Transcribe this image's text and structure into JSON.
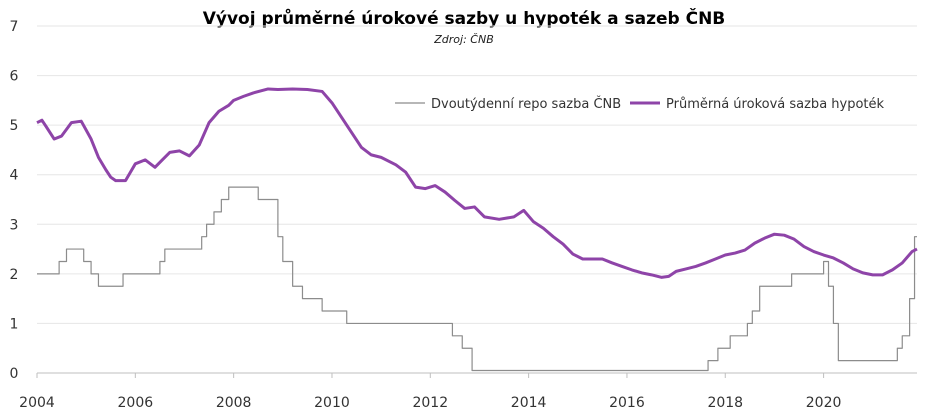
{
  "chart_data": {
    "type": "line",
    "title": "Vývoj průměrné úrokové sazby u hypoték a sazeb ČNB",
    "subtitle": "Zdroj: ČNB",
    "xlabel": "",
    "ylabel": "",
    "xlim": [
      2004,
      2021.9
    ],
    "ylim": [
      0,
      7
    ],
    "x_ticks": [
      2004,
      2006,
      2008,
      2010,
      2012,
      2014,
      2016,
      2018,
      2020
    ],
    "x_tick_labels": [
      "2004",
      "2006",
      "2008",
      "2010",
      "2012",
      "2014",
      "2016",
      "2018",
      "2020"
    ],
    "y_ticks": [
      0,
      1,
      2,
      3,
      4,
      5,
      6,
      7
    ],
    "y_tick_labels": [
      "0",
      "1",
      "2",
      "3",
      "4",
      "5",
      "6",
      "7"
    ],
    "grid": "horizontal",
    "legend_position": "top-right",
    "colors": {
      "repo": "#8c8c8c",
      "mortgage": "#8e44a8"
    },
    "series": [
      {
        "name": "Dvoutýdenní repo sazba ČNB",
        "style": "step",
        "x": [
          2004.0,
          2004.45,
          2004.6,
          2004.95,
          2005.1,
          2005.25,
          2005.75,
          2006.5,
          2006.6,
          2006.8,
          2007.35,
          2007.45,
          2007.6,
          2007.75,
          2007.9,
          2008.1,
          2008.5,
          2008.6,
          2008.9,
          2009.0,
          2009.2,
          2009.4,
          2009.8,
          2010.3,
          2012.45,
          2012.65,
          2012.85,
          2017.5,
          2017.65,
          2017.85,
          2018.1,
          2018.45,
          2018.55,
          2018.7,
          2019.1,
          2019.35,
          2020.0,
          2020.1,
          2020.2,
          2020.3,
          2021.4,
          2021.5,
          2021.6,
          2021.75,
          2021.85,
          2021.9
        ],
        "y": [
          2.0,
          2.25,
          2.5,
          2.25,
          2.0,
          1.75,
          2.0,
          2.25,
          2.5,
          2.5,
          2.75,
          3.0,
          3.25,
          3.5,
          3.75,
          3.75,
          3.5,
          3.5,
          2.75,
          2.25,
          1.75,
          1.5,
          1.25,
          1.0,
          0.75,
          0.5,
          0.05,
          0.05,
          0.25,
          0.5,
          0.75,
          1.0,
          1.25,
          1.75,
          1.75,
          2.0,
          2.25,
          1.75,
          1.0,
          0.25,
          0.25,
          0.5,
          0.75,
          1.5,
          2.75,
          2.75
        ],
        "values": [
          2.0,
          2.25,
          2.5,
          2.25,
          2.0,
          1.75,
          2.0,
          2.25,
          2.5,
          2.5,
          2.75,
          3.0,
          3.25,
          3.5,
          3.75,
          3.75,
          3.5,
          3.5,
          2.75,
          2.25,
          1.75,
          1.5,
          1.25,
          1.0,
          0.75,
          0.5,
          0.05,
          0.05,
          0.25,
          0.5,
          0.75,
          1.0,
          1.25,
          1.75,
          1.75,
          2.0,
          2.25,
          1.75,
          1.0,
          0.25,
          0.25,
          0.5,
          0.75,
          1.5,
          2.75,
          2.75
        ]
      },
      {
        "name": "Průměrná úroková sazba hypoték",
        "style": "line",
        "x": [
          2004.0,
          2004.1,
          2004.2,
          2004.35,
          2004.5,
          2004.7,
          2004.9,
          2005.1,
          2005.25,
          2005.4,
          2005.5,
          2005.6,
          2005.8,
          2006.0,
          2006.2,
          2006.4,
          2006.55,
          2006.7,
          2006.9,
          2007.1,
          2007.3,
          2007.5,
          2007.7,
          2007.9,
          2008.0,
          2008.2,
          2008.4,
          2008.7,
          2008.9,
          2009.2,
          2009.5,
          2009.8,
          2010.0,
          2010.2,
          2010.4,
          2010.6,
          2010.8,
          2011.0,
          2011.3,
          2011.5,
          2011.7,
          2011.9,
          2012.1,
          2012.3,
          2012.5,
          2012.7,
          2012.9,
          2013.1,
          2013.4,
          2013.7,
          2013.9,
          2014.1,
          2014.3,
          2014.5,
          2014.7,
          2014.9,
          2015.1,
          2015.3,
          2015.5,
          2015.7,
          2015.9,
          2016.1,
          2016.3,
          2016.5,
          2016.7,
          2016.85,
          2017.0,
          2017.2,
          2017.4,
          2017.6,
          2017.8,
          2018.0,
          2018.2,
          2018.4,
          2018.6,
          2018.8,
          2019.0,
          2019.2,
          2019.4,
          2019.6,
          2019.8,
          2020.0,
          2020.2,
          2020.4,
          2020.6,
          2020.8,
          2021.0,
          2021.2,
          2021.4,
          2021.6,
          2021.8,
          2021.9
        ],
        "y": [
          5.05,
          5.1,
          4.95,
          4.72,
          4.78,
          5.05,
          5.08,
          4.72,
          4.35,
          4.1,
          3.95,
          3.88,
          3.88,
          4.22,
          4.3,
          4.15,
          4.3,
          4.45,
          4.48,
          4.38,
          4.6,
          5.05,
          5.28,
          5.4,
          5.5,
          5.58,
          5.65,
          5.73,
          5.72,
          5.73,
          5.72,
          5.68,
          5.45,
          5.15,
          4.85,
          4.55,
          4.4,
          4.35,
          4.2,
          4.05,
          3.75,
          3.72,
          3.78,
          3.65,
          3.48,
          3.32,
          3.35,
          3.15,
          3.1,
          3.15,
          3.28,
          3.05,
          2.92,
          2.75,
          2.6,
          2.4,
          2.3,
          2.3,
          2.3,
          2.22,
          2.15,
          2.08,
          2.02,
          1.98,
          1.93,
          1.95,
          2.05,
          2.1,
          2.15,
          2.22,
          2.3,
          2.38,
          2.42,
          2.48,
          2.62,
          2.72,
          2.8,
          2.78,
          2.7,
          2.55,
          2.45,
          2.38,
          2.32,
          2.22,
          2.1,
          2.02,
          1.98,
          1.98,
          2.08,
          2.22,
          2.45,
          2.5
        ],
        "values": [
          5.05,
          5.1,
          4.95,
          4.72,
          4.78,
          5.05,
          5.08,
          4.72,
          4.35,
          4.1,
          3.95,
          3.88,
          3.88,
          4.22,
          4.3,
          4.15,
          4.3,
          4.45,
          4.48,
          4.38,
          4.6,
          5.05,
          5.28,
          5.4,
          5.5,
          5.58,
          5.65,
          5.73,
          5.72,
          5.73,
          5.72,
          5.68,
          5.45,
          5.15,
          4.85,
          4.55,
          4.4,
          4.35,
          4.2,
          4.05,
          3.75,
          3.72,
          3.78,
          3.65,
          3.48,
          3.32,
          3.35,
          3.15,
          3.1,
          3.15,
          3.28,
          3.05,
          2.92,
          2.75,
          2.6,
          2.4,
          2.3,
          2.3,
          2.3,
          2.22,
          2.15,
          2.08,
          2.02,
          1.98,
          1.93,
          1.95,
          2.05,
          2.1,
          2.15,
          2.22,
          2.3,
          2.38,
          2.42,
          2.48,
          2.62,
          2.72,
          2.8,
          2.78,
          2.7,
          2.55,
          2.45,
          2.38,
          2.32,
          2.22,
          2.1,
          2.02,
          1.98,
          1.98,
          2.08,
          2.22,
          2.45,
          2.5
        ]
      }
    ]
  }
}
